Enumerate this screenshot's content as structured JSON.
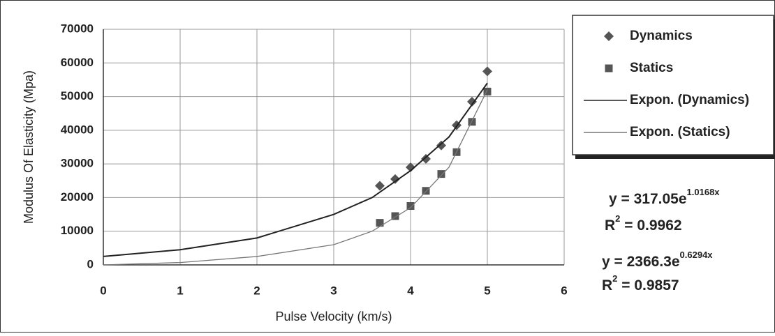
{
  "chart_data": {
    "type": "scatter",
    "x_label": "Pulse Velocity (km/s)",
    "y_label": "Modulus Of Elasticity (Mpa)",
    "xlim": [
      0,
      6
    ],
    "xticks": [
      0,
      1,
      2,
      3,
      4,
      5,
      6
    ],
    "ylim": [
      0,
      70000
    ],
    "yticks": [
      0,
      10000,
      20000,
      30000,
      40000,
      50000,
      60000,
      70000
    ],
    "grid": true,
    "legend": "right",
    "series": [
      {
        "name": "Dynamics",
        "marker": "diamond",
        "color": "#555555",
        "x": [
          3.6,
          3.8,
          4.0,
          4.2,
          4.4,
          4.6,
          4.8,
          5.0
        ],
        "values": [
          23500,
          25500,
          29000,
          31500,
          35500,
          41500,
          48500,
          57500
        ]
      },
      {
        "name": "Statics",
        "marker": "square",
        "color": "#555555",
        "x": [
          3.6,
          3.8,
          4.0,
          4.2,
          4.4,
          4.6,
          4.8,
          5.0
        ],
        "values": [
          12500,
          14500,
          17500,
          22000,
          27000,
          33500,
          42500,
          51500
        ]
      },
      {
        "name": "Expon. (Dynamics)",
        "marker": "line",
        "color": "#222222",
        "x": [
          0,
          1,
          2,
          3,
          3.5,
          4,
          4.5,
          5
        ],
        "values": [
          2500,
          4500,
          8000,
          15000,
          20000,
          28000,
          38000,
          54000
        ]
      },
      {
        "name": "Expon. (Statics)",
        "marker": "line",
        "color": "#777777",
        "x": [
          0,
          1,
          2,
          3,
          3.5,
          4,
          4.5,
          5
        ],
        "values": [
          0,
          700,
          2500,
          6000,
          10000,
          17000,
          29000,
          52000
        ]
      }
    ],
    "annotations": [
      {
        "base": "y = 317.05e",
        "exponent": "1.0168x"
      },
      {
        "base": "R",
        "exponent": "2",
        "rest": " = 0.9962"
      },
      {
        "base": "y = 2366.3e",
        "exponent": "0.6294x"
      },
      {
        "base": "R",
        "exponent": "2",
        "rest": " = 0.9857"
      }
    ]
  }
}
